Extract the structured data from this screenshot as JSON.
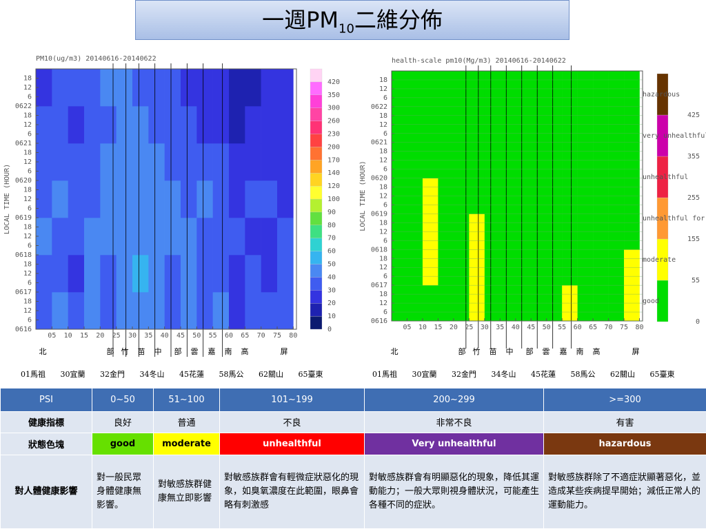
{
  "title": {
    "prefix": "一週PM",
    "sub": "10",
    "suffix": "二維分佈"
  },
  "chart_data": [
    {
      "type": "heatmap",
      "title": "PM10(ug/m3) 20140616-20140622",
      "y_label": "LOCAL TIME (HOUR)",
      "grid": false,
      "xbins": [
        0,
        5,
        10,
        15,
        20,
        25,
        30,
        35,
        40,
        45,
        50,
        55,
        60,
        65,
        70,
        75,
        80
      ],
      "ybins": [
        0,
        24,
        48,
        72,
        96,
        120,
        144,
        168
      ],
      "xlim": [
        0,
        81
      ],
      "ylim": [
        0,
        168
      ],
      "xticks": [
        {
          "value": 5,
          "label": "05"
        },
        10,
        15,
        20,
        25,
        30,
        35,
        40,
        45,
        50,
        55,
        60,
        65,
        70,
        75,
        80
      ],
      "yticks": [
        {
          "value": 0,
          "label": "0616"
        },
        6,
        12,
        18,
        {
          "value": 24,
          "label": "0617"
        },
        {
          "value": 30,
          "label": "6"
        },
        {
          "value": 36,
          "label": "12"
        },
        {
          "value": 42,
          "label": "18"
        },
        {
          "value": 48,
          "label": "0618"
        },
        {
          "value": 54,
          "label": "6"
        },
        {
          "value": 60,
          "label": "12"
        },
        {
          "value": 66,
          "label": "18"
        },
        {
          "value": 72,
          "label": "0619"
        },
        {
          "value": 78,
          "label": "6"
        },
        {
          "value": 84,
          "label": "12"
        },
        {
          "value": 90,
          "label": "18"
        },
        {
          "value": 96,
          "label": "0620"
        },
        {
          "value": 102,
          "label": "6"
        },
        {
          "value": 108,
          "label": "12"
        },
        {
          "value": 114,
          "label": "18"
        },
        {
          "value": 120,
          "label": "0621"
        },
        {
          "value": 126,
          "label": "6"
        },
        {
          "value": 132,
          "label": "12"
        },
        {
          "value": 138,
          "label": "18"
        },
        {
          "value": 144,
          "label": "0622"
        },
        {
          "value": 150,
          "label": "6"
        },
        {
          "value": 156,
          "label": "12"
        },
        {
          "value": 162,
          "label": "18"
        }
      ],
      "levels": [
        0,
        10,
        20,
        30,
        40,
        50,
        60,
        70,
        80,
        90,
        100,
        120,
        140,
        170,
        200,
        230,
        260,
        300,
        350,
        420
      ],
      "colors": [
        "#0b1a70",
        "#1e22b0",
        "#3434e0",
        "#3f5cf0",
        "#4a88f2",
        "#36b4f0",
        "#2fd2d2",
        "#3ee082",
        "#62e040",
        "#b4f030",
        "#ffff30",
        "#ffd422",
        "#ffa424",
        "#ff7232",
        "#ff4242",
        "#ff3276",
        "#ff44a4",
        "#ff40d8",
        "#ff6cff",
        "#ffd4f4"
      ],
      "values": [
        [
          35,
          40,
          30,
          45,
          38,
          42,
          45,
          40,
          35,
          45,
          30,
          40,
          28,
          35,
          30,
          32
        ],
        [
          38,
          35,
          28,
          40,
          35,
          45,
          50,
          42,
          38,
          40,
          35,
          30,
          25,
          30,
          28,
          30
        ],
        [
          40,
          38,
          32,
          42,
          40,
          48,
          45,
          40,
          45,
          42,
          38,
          35,
          30,
          28,
          25,
          30
        ],
        [
          36,
          42,
          35,
          38,
          45,
          42,
          48,
          45,
          40,
          38,
          42,
          35,
          28,
          30,
          32,
          28
        ],
        [
          32,
          38,
          30,
          35,
          40,
          45,
          42,
          40,
          35,
          38,
          35,
          30,
          25,
          22,
          28,
          25
        ],
        [
          30,
          35,
          28,
          32,
          38,
          40,
          45,
          38,
          35,
          30,
          28,
          22,
          18,
          20,
          25,
          22
        ],
        [
          28,
          32,
          30,
          35,
          40,
          42,
          38,
          35,
          32,
          28,
          25,
          20,
          15,
          18,
          22,
          20
        ]
      ]
    },
    {
      "type": "heatmap",
      "title": "health-scale pm10(Mg/m3) 20140616-20140622",
      "y_label": "LOCAL TIME (HOUR)",
      "grid": true,
      "xbins": [
        0,
        5,
        10,
        15,
        20,
        25,
        30,
        35,
        40,
        45,
        50,
        55,
        60,
        65,
        70,
        75,
        80
      ],
      "ybins": [
        0,
        24,
        48,
        72,
        96,
        120,
        144,
        168
      ],
      "xlim": [
        0,
        81
      ],
      "ylim": [
        0,
        168
      ],
      "xticks": [
        {
          "value": 5,
          "label": "05"
        },
        10,
        15,
        20,
        25,
        30,
        35,
        40,
        45,
        50,
        55,
        60,
        65,
        70,
        75,
        80
      ],
      "yticks": [
        {
          "value": 0,
          "label": "0616"
        },
        6,
        12,
        18,
        {
          "value": 24,
          "label": "0617"
        },
        {
          "value": 30,
          "label": "6"
        },
        {
          "value": 36,
          "label": "12"
        },
        {
          "value": 42,
          "label": "18"
        },
        {
          "value": 48,
          "label": "0618"
        },
        {
          "value": 54,
          "label": "6"
        },
        {
          "value": 60,
          "label": "12"
        },
        {
          "value": 66,
          "label": "18"
        },
        {
          "value": 72,
          "label": "0619"
        },
        {
          "value": 78,
          "label": "6"
        },
        {
          "value": 84,
          "label": "12"
        },
        {
          "value": 90,
          "label": "18"
        },
        {
          "value": 96,
          "label": "0620"
        },
        {
          "value": 102,
          "label": "6"
        },
        {
          "value": 108,
          "label": "12"
        },
        {
          "value": 114,
          "label": "18"
        },
        {
          "value": 120,
          "label": "0621"
        },
        {
          "value": 126,
          "label": "6"
        },
        {
          "value": 132,
          "label": "12"
        },
        {
          "value": 138,
          "label": "18"
        },
        {
          "value": 144,
          "label": "0622"
        },
        {
          "value": 150,
          "label": "6"
        },
        {
          "value": 156,
          "label": "12"
        },
        {
          "value": 162,
          "label": "18"
        }
      ],
      "levels": [
        0,
        55,
        155,
        255,
        355,
        425
      ],
      "colors": [
        "#00dd00",
        "#ffff00",
        "#ff9933",
        "#ee2244",
        "#cc00aa",
        "#663300"
      ],
      "level_names": [
        "good",
        "moderate",
        "unhealthful for sensitive",
        "unhealthful",
        "very unhealthful",
        "hazardous"
      ],
      "values": [
        [
          30,
          30,
          28,
          35,
          30,
          70,
          30,
          30,
          30,
          30,
          35,
          65,
          30,
          28,
          30,
          70
        ],
        [
          30,
          30,
          60,
          35,
          30,
          75,
          30,
          30,
          30,
          30,
          30,
          40,
          30,
          28,
          30,
          65
        ],
        [
          30,
          28,
          65,
          30,
          30,
          60,
          30,
          30,
          30,
          30,
          30,
          35,
          30,
          28,
          30,
          40
        ],
        [
          28,
          30,
          60,
          30,
          30,
          40,
          30,
          30,
          28,
          30,
          30,
          30,
          28,
          28,
          30,
          35
        ],
        [
          28,
          30,
          35,
          30,
          30,
          45,
          30,
          30,
          28,
          30,
          30,
          30,
          28,
          28,
          30,
          40
        ],
        [
          28,
          28,
          30,
          30,
          30,
          45,
          30,
          30,
          28,
          28,
          30,
          30,
          28,
          25,
          28,
          30
        ],
        [
          28,
          28,
          30,
          30,
          30,
          35,
          30,
          30,
          28,
          28,
          30,
          30,
          28,
          25,
          28,
          30
        ]
      ]
    }
  ],
  "regions": [
    "北",
    "部",
    "竹",
    "苗",
    "中",
    "部",
    "雲",
    "嘉",
    "南",
    "高",
    "屏"
  ],
  "stations": [
    "01馬祖",
    "30宜蘭",
    "32金門",
    "34冬山",
    "45花蓮",
    "58馬公",
    "62關山",
    "65臺東"
  ],
  "table": {
    "header": [
      "PSI",
      "0~50",
      "51~100",
      "101~199",
      "200~299",
      ">=300"
    ],
    "rows": [
      [
        "健康指標",
        "良好",
        "普通",
        "不良",
        "非常不良",
        "有害"
      ],
      [
        "狀態色塊",
        "good",
        "moderate",
        "unhealthful",
        "Very unhealthful",
        "hazardous"
      ],
      [
        "對人體健康影響",
        "對一般民眾身體健康無影響。",
        "對敏感族群健康無立即影響",
        "對敏感族群會有輕微症狀惡化的現象，如臭氧濃度在此範圍，眼鼻會略有刺激感",
        "對敏感族群會有明顯惡化的現象，降低其運動能力；一般大眾則視身體狀況，可能產生各種不同的症狀。",
        "對敏感族群除了不適症狀顯著惡化，並造成某些疾病提早開始；減低正常人的運動能力。"
      ]
    ],
    "status_colors": [
      "#66e000",
      "#ffff00",
      "#ff0000",
      "#7030a0",
      "#7a3810"
    ]
  }
}
